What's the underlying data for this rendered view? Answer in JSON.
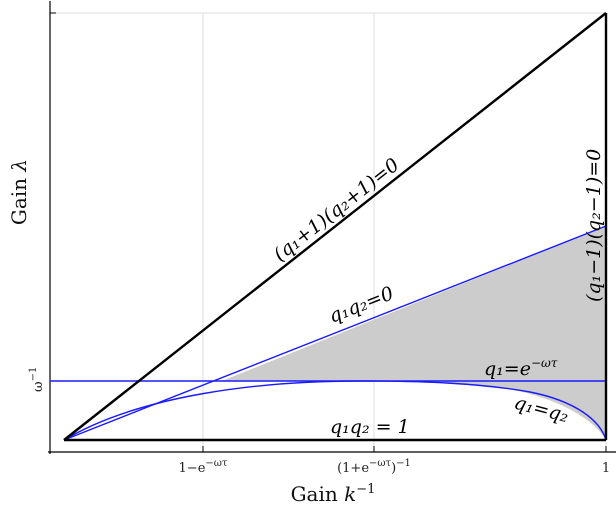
{
  "axes": {
    "xlabel_text": "Gain ",
    "xlabel_var": "k",
    "xlabel_sup": "−1",
    "ylabel_text": "Gain ",
    "ylabel_var": "λ"
  },
  "x_ticks": [
    {
      "pre": "1−e",
      "sup": "−ωτ",
      "post": ""
    },
    {
      "pre": "(1+e",
      "sup": "−ωτ",
      "post": ")",
      "sup2": "−1"
    },
    {
      "pre": "1",
      "sup": "",
      "post": ""
    }
  ],
  "y_tick": {
    "base": "ω",
    "sup": "−1"
  },
  "curve_labels": {
    "q_plus": "(q₁+1)(q₂+1)=0",
    "q_minus": "(q₁−1)(q₂−1)=0",
    "q_zero": "q₁q₂=0",
    "q1_exp_lhs": "q₁=e",
    "q1_exp_sup": "−ωτ",
    "q_eq": "q₁=q₂",
    "q_one": "q₁q₂ = 1"
  },
  "colors": {
    "boundary": "#000000",
    "blue_curves": "#1a1aff",
    "shaded": "#cccccc",
    "grid": "#dedede"
  }
}
